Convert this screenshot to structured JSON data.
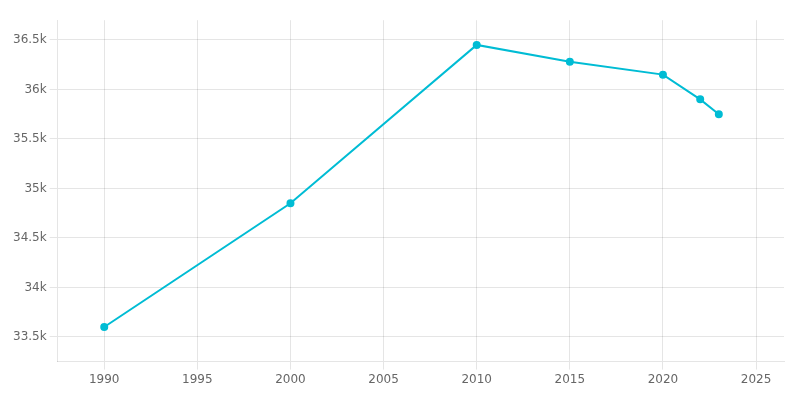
{
  "chart_data": {
    "type": "line",
    "x": [
      1990,
      2000,
      2010,
      2015,
      2020,
      2022,
      2023
    ],
    "values": [
      33600,
      34850,
      36450,
      36280,
      36150,
      35900,
      35750
    ],
    "color": "#00BCD4",
    "marker": "circle",
    "xlim": [
      1987.5,
      2026.5
    ],
    "xticks": [
      1990,
      1995,
      2000,
      2005,
      2010,
      2015,
      2020,
      2025
    ],
    "ylim": [
      33250,
      36700
    ],
    "yticks": [
      {
        "value": 33500,
        "label": "33.5k"
      },
      {
        "value": 34000,
        "label": "34k"
      },
      {
        "value": 34500,
        "label": "34.5k"
      },
      {
        "value": 35000,
        "label": "35k"
      },
      {
        "value": 35500,
        "label": "35.5k"
      },
      {
        "value": 36000,
        "label": "36k"
      },
      {
        "value": 36500,
        "label": "36.5k"
      }
    ],
    "grid": true
  }
}
